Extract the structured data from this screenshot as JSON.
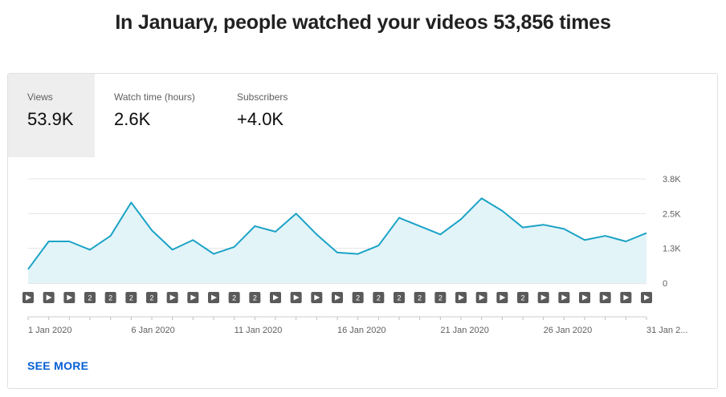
{
  "headline": "In January, people watched your videos 53,856 times",
  "tabs": [
    {
      "label": "Views",
      "value": "53.9K",
      "active": true
    },
    {
      "label": "Watch time (hours)",
      "value": "2.6K",
      "active": false
    },
    {
      "label": "Subscribers",
      "value": "+4.0K",
      "active": false
    }
  ],
  "see_more": "SEE MORE",
  "chart_data": {
    "type": "area",
    "series": [
      {
        "values": [
          500,
          1500,
          1500,
          1200,
          1700,
          2900,
          1900,
          1200,
          1550,
          1050,
          1300,
          2050,
          1850,
          2500,
          1750,
          1100,
          1050,
          1350,
          2350,
          2050,
          1750,
          2300,
          3050,
          2600,
          2000,
          2100,
          1950,
          1550,
          1700,
          1500,
          1800
        ]
      }
    ],
    "x_tick_labels": [
      "1 Jan 2020",
      "6 Jan 2020",
      "11 Jan 2020",
      "16 Jan 2020",
      "21 Jan 2020",
      "26 Jan 2020",
      "31 Jan 2..."
    ],
    "y_tick_labels": [
      "0",
      "1.3K",
      "2.5K",
      "3.8K"
    ],
    "y_ticks": [
      0,
      1250,
      2500,
      3750
    ],
    "ylim": [
      0,
      3750
    ],
    "grid": true,
    "line_color": "#1ba3c6",
    "fill_color": "#e3f4f9",
    "markers": [
      "play",
      "play",
      "play",
      "2",
      "2",
      "2",
      "2",
      "play",
      "play",
      "play",
      "2",
      "2",
      "play",
      "play",
      "play",
      "play",
      "2",
      "2",
      "2",
      "2",
      "2",
      "play",
      "play",
      "play",
      "2",
      "play",
      "play",
      "play",
      "play",
      "play",
      "play"
    ]
  }
}
